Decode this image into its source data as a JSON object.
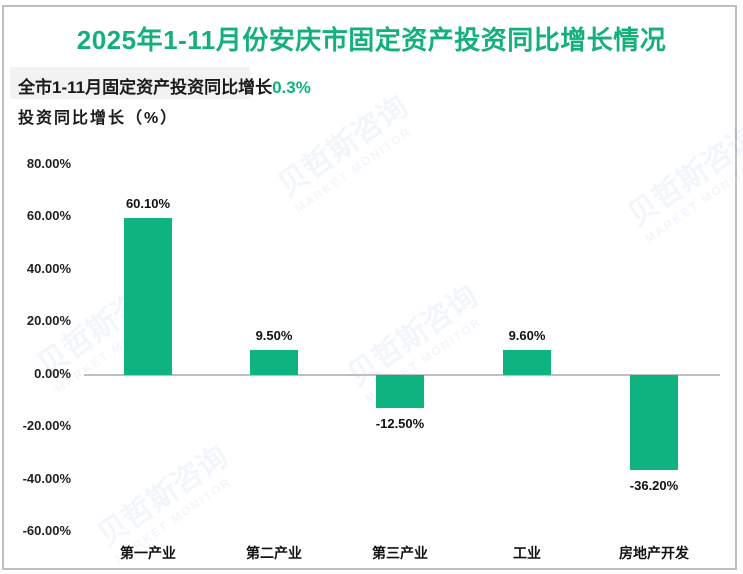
{
  "title": "2025年1-11月份安庆市固定资产投资同比增长情况",
  "summary": {
    "prefix": "全市1-11月固定资产投资同比增长",
    "value": "0.3%"
  },
  "y_axis_label": "投资同比增长（%）",
  "watermark": {
    "cn": "贝哲斯咨询",
    "en": "MARKET MONITOR"
  },
  "colors": {
    "accent": "#13b07b",
    "bar": "#0fb37f",
    "axis": "#bfbfbf",
    "summary_bg": "#f2f2f2"
  },
  "y_ticks": [
    "80.00%",
    "60.00%",
    "40.00%",
    "20.00%",
    "0.00%",
    "-20.00%",
    "-40.00%",
    "-60.00%"
  ],
  "bars": [
    {
      "category": "第一产业",
      "value": 60.1,
      "label": "60.10%"
    },
    {
      "category": "第二产业",
      "value": 9.5,
      "label": "9.50%"
    },
    {
      "category": "第三产业",
      "value": -12.5,
      "label": "-12.50%"
    },
    {
      "category": "工业",
      "value": 9.6,
      "label": "9.60%"
    },
    {
      "category": "房地产开发",
      "value": -36.2,
      "label": "-36.20%"
    }
  ],
  "chart_data": {
    "type": "bar",
    "title": "2025年1-11月份安庆市固定资产投资同比增长情况",
    "subtitle": "全市1-11月固定资产投资同比增长0.3%",
    "categories": [
      "第一产业",
      "第二产业",
      "第三产业",
      "工业",
      "房地产开发"
    ],
    "values": [
      60.1,
      9.5,
      -12.5,
      9.6,
      -36.2
    ],
    "data_labels": [
      "60.10%",
      "9.50%",
      "-12.50%",
      "9.60%",
      "-36.20%"
    ],
    "xlabel": "",
    "ylabel": "投资同比增长（%）",
    "ylim": [
      -60,
      80
    ],
    "y_tick_step": 20,
    "grid": false,
    "legend": "none"
  }
}
